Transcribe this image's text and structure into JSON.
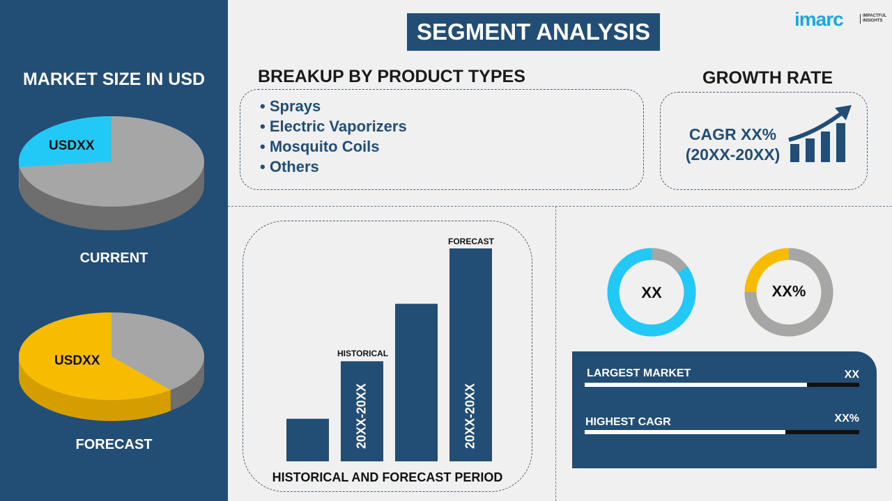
{
  "left_panel": {
    "title": "MARKET SIZE IN USD",
    "current": {
      "label": "CURRENT",
      "value_label": "USDXX",
      "share": 0.27
    },
    "forecast": {
      "label": "FORECAST",
      "value_label": "USDXX",
      "share": 0.61
    }
  },
  "header": {
    "title": "SEGMENT ANALYSIS"
  },
  "logo": {
    "brand": "imarc",
    "tagline": "IMPACTFUL INSIGHTS"
  },
  "breakup": {
    "title": "BREAKUP BY PRODUCT TYPES",
    "items": [
      "Sprays",
      "Electric Vaporizers",
      "Mosquito Coils",
      "Others"
    ]
  },
  "growth": {
    "title": "GROWTH RATE",
    "cagr": "CAGR XX%",
    "period": "(20XX-20XX)"
  },
  "bar_chart": {
    "caption": "HISTORICAL AND FORECAST PERIOD",
    "historical_label": "HISTORICAL",
    "forecast_label": "FORECAST",
    "historical_period": "20XX-20XX",
    "forecast_period": "20XX-20XX",
    "relative_values": [
      20,
      47,
      74,
      100
    ]
  },
  "donuts": [
    {
      "label": "XX",
      "share": 0.85
    },
    {
      "label": "XX%",
      "share": 0.25
    }
  ],
  "kpi": {
    "largest_market": {
      "label": "LARGEST MARKET",
      "value": "XX",
      "fill": 0.81
    },
    "highest_cagr": {
      "label": "HIGHEST CAGR",
      "value": "XX%",
      "fill": 0.73
    }
  },
  "colors": {
    "navy": "#224e76",
    "cyan": "#22c9f7",
    "yellow": "#f7bb00",
    "gray": "#a6a6a6"
  }
}
